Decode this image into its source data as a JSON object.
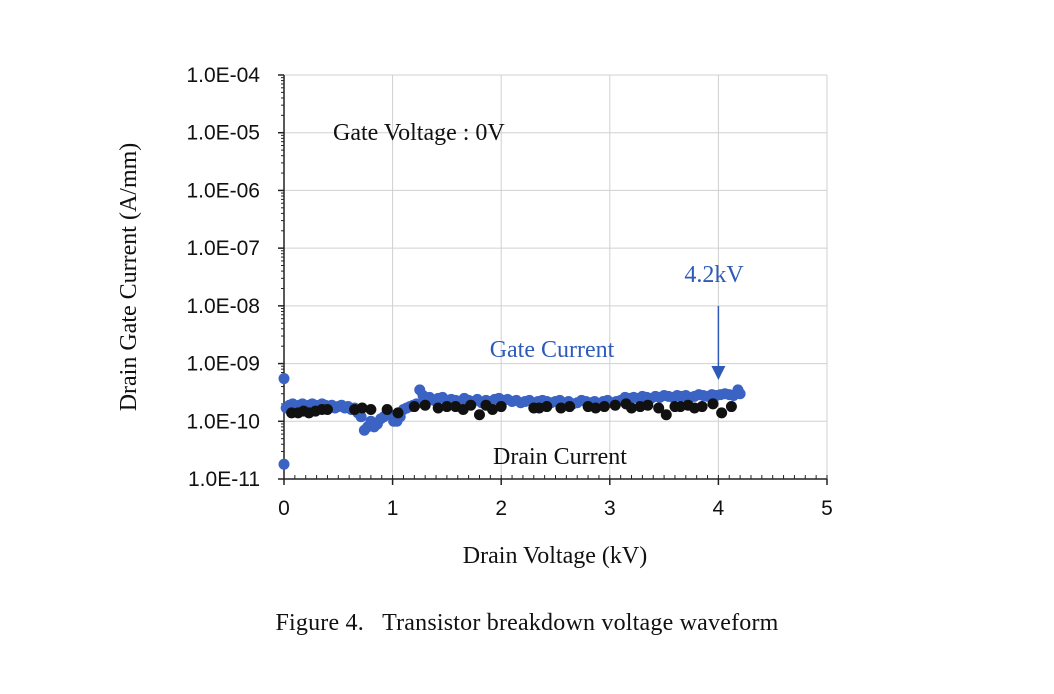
{
  "caption": "Figure 4.   Transistor breakdown voltage waveform",
  "colors": {
    "gate": "#3a63c4",
    "drain": "#111111",
    "annotation_blue": "#2f5bb8",
    "grid": "#d0d0d0",
    "axis": "#222222"
  },
  "chart_data": {
    "type": "scatter",
    "xlabel": "Drain Voltage (kV)",
    "ylabel": "Drain Gate Current (A/mm)",
    "xlim": [
      0,
      5
    ],
    "ylim": [
      1e-11,
      0.0001
    ],
    "yscale": "log",
    "grid": true,
    "x_ticks": [
      "0",
      "1",
      "2",
      "3",
      "4",
      "5"
    ],
    "y_ticks": [
      "1.0E-04",
      "1.0E-05",
      "1.0E-06",
      "1.0E-07",
      "1.0E-08",
      "1.0E-09",
      "1.0E-10",
      "1.0E-11"
    ],
    "annotations": {
      "condition": "Gate Voltage : 0V",
      "breakdown_label": "4.2kV",
      "breakdown_x": 4.0,
      "gate_label": "Gate Current",
      "drain_label": "Drain Current"
    },
    "series": [
      {
        "name": "Gate Current",
        "color": "#3a63c4",
        "x": [
          0.0,
          0.0,
          0.02,
          0.05,
          0.08,
          0.11,
          0.14,
          0.17,
          0.2,
          0.23,
          0.26,
          0.29,
          0.32,
          0.35,
          0.38,
          0.41,
          0.44,
          0.47,
          0.5,
          0.53,
          0.56,
          0.59,
          0.62,
          0.65,
          0.68,
          0.71,
          0.74,
          0.77,
          0.8,
          0.83,
          0.86,
          0.89,
          0.92,
          0.95,
          0.98,
          1.01,
          1.04,
          1.07,
          1.1,
          1.13,
          1.16,
          1.19,
          1.22,
          1.25,
          1.28,
          1.31,
          1.34,
          1.38,
          1.42,
          1.46,
          1.5,
          1.54,
          1.58,
          1.62,
          1.66,
          1.7,
          1.74,
          1.78,
          1.82,
          1.86,
          1.9,
          1.94,
          1.98,
          2.02,
          2.06,
          2.1,
          2.14,
          2.18,
          2.22,
          2.26,
          2.3,
          2.34,
          2.38,
          2.42,
          2.46,
          2.5,
          2.54,
          2.58,
          2.62,
          2.66,
          2.7,
          2.74,
          2.78,
          2.82,
          2.86,
          2.9,
          2.94,
          2.98,
          3.02,
          3.06,
          3.1,
          3.14,
          3.18,
          3.22,
          3.26,
          3.3,
          3.34,
          3.38,
          3.42,
          3.46,
          3.5,
          3.54,
          3.58,
          3.62,
          3.66,
          3.7,
          3.74,
          3.78,
          3.82,
          3.86,
          3.9,
          3.94,
          3.98,
          4.02,
          4.06,
          4.1,
          4.14,
          4.18,
          4.2
        ],
        "y": [
          1.8e-11,
          5.5e-10,
          1.7e-10,
          1.9e-10,
          2e-10,
          1.8e-10,
          1.9e-10,
          2e-10,
          1.8e-10,
          1.9e-10,
          2e-10,
          1.9e-10,
          1.8e-10,
          2e-10,
          1.9e-10,
          1.8e-10,
          1.9e-10,
          1.7e-10,
          1.8e-10,
          1.9e-10,
          1.7e-10,
          1.8e-10,
          1.6e-10,
          1.7e-10,
          1.4e-10,
          1.2e-10,
          7e-11,
          8e-11,
          1e-10,
          8e-11,
          9e-11,
          1.1e-10,
          1.2e-10,
          1.4e-10,
          1.3e-10,
          1e-10,
          1e-10,
          1.2e-10,
          1.6e-10,
          1.7e-10,
          1.8e-10,
          1.9e-10,
          2e-10,
          3.5e-10,
          2.8e-10,
          2.5e-10,
          2.6e-10,
          2.3e-10,
          2.5e-10,
          2.6e-10,
          2.2e-10,
          2.4e-10,
          2.3e-10,
          2.2e-10,
          2.5e-10,
          2.3e-10,
          2.2e-10,
          2.4e-10,
          2.1e-10,
          2.3e-10,
          2.2e-10,
          2.4e-10,
          2.5e-10,
          2.3e-10,
          2.4e-10,
          2.2e-10,
          2.3e-10,
          2.1e-10,
          2.2e-10,
          2.3e-10,
          2.1e-10,
          2.2e-10,
          2.3e-10,
          2.2e-10,
          2.1e-10,
          2.2e-10,
          2.3e-10,
          2.1e-10,
          2.2e-10,
          2e-10,
          2.1e-10,
          2.3e-10,
          2.2e-10,
          2.1e-10,
          2.2e-10,
          2e-10,
          2.2e-10,
          2.3e-10,
          2.1e-10,
          2.2e-10,
          2.3e-10,
          2.6e-10,
          2.5e-10,
          2.6e-10,
          2.5e-10,
          2.7e-10,
          2.6e-10,
          2.5e-10,
          2.7e-10,
          2.6e-10,
          2.8e-10,
          2.7e-10,
          2.6e-10,
          2.8e-10,
          2.7e-10,
          2.8e-10,
          2.6e-10,
          2.7e-10,
          2.9e-10,
          2.8e-10,
          2.7e-10,
          2.9e-10,
          2.8e-10,
          2.9e-10,
          3e-10,
          2.9e-10,
          2.8e-10,
          3.5e-10,
          3e-10
        ]
      },
      {
        "name": "Drain Current",
        "color": "#111111",
        "x": [
          0.07,
          0.13,
          0.18,
          0.23,
          0.29,
          0.35,
          0.4,
          0.65,
          0.72,
          0.8,
          0.95,
          1.05,
          1.2,
          1.3,
          1.42,
          1.5,
          1.58,
          1.65,
          1.72,
          1.8,
          1.86,
          1.92,
          2.0,
          2.3,
          2.35,
          2.42,
          2.55,
          2.63,
          2.8,
          2.87,
          2.95,
          3.05,
          3.15,
          3.2,
          3.28,
          3.35,
          3.45,
          3.52,
          3.6,
          3.65,
          3.72,
          3.78,
          3.85,
          3.95,
          4.03,
          4.12
        ],
        "y": [
          1.4e-10,
          1.4e-10,
          1.5e-10,
          1.4e-10,
          1.5e-10,
          1.6e-10,
          1.6e-10,
          1.6e-10,
          1.7e-10,
          1.6e-10,
          1.6e-10,
          1.4e-10,
          1.8e-10,
          1.9e-10,
          1.7e-10,
          1.8e-10,
          1.8e-10,
          1.6e-10,
          1.9e-10,
          1.3e-10,
          1.9e-10,
          1.6e-10,
          1.8e-10,
          1.7e-10,
          1.7e-10,
          1.8e-10,
          1.7e-10,
          1.8e-10,
          1.8e-10,
          1.7e-10,
          1.8e-10,
          1.9e-10,
          2e-10,
          1.7e-10,
          1.8e-10,
          1.9e-10,
          1.7e-10,
          1.3e-10,
          1.8e-10,
          1.8e-10,
          1.9e-10,
          1.7e-10,
          1.8e-10,
          2e-10,
          1.4e-10,
          1.8e-10
        ]
      }
    ]
  }
}
